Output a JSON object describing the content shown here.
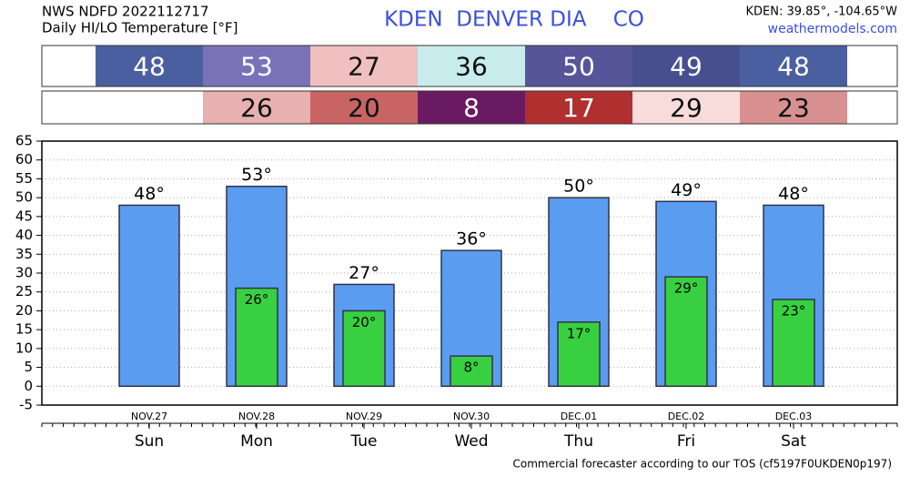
{
  "chart_data": {
    "type": "bar",
    "title": "NWS NDFD 2022112717",
    "subtitle": "Daily HI/LO Temperature [°F]",
    "station": "KDEN  DENVER DIA    CO",
    "location": "KDEN: 39.85°, -104.65°W",
    "source": "weathermodels.com",
    "footer": "Commercial forecaster according to our TOS (cf5197F0UKDEN0p197)",
    "categories": [
      "Sun",
      "Mon",
      "Tue",
      "Wed",
      "Thu",
      "Fri",
      "Sat"
    ],
    "dates": [
      "NOV.27",
      "NOV.28",
      "NOV.29",
      "NOV.30",
      "DEC.01",
      "DEC.02",
      "DEC.03"
    ],
    "series": [
      {
        "name": "HI",
        "color": "#5a9cf0",
        "values": [
          48,
          53,
          27,
          36,
          50,
          49,
          48
        ],
        "value_labels": [
          "48°",
          "53°",
          "27°",
          "36°",
          "50°",
          "49°",
          "48°"
        ],
        "cell_colors": [
          "#4a5fa0",
          "#7a72b8",
          "#f0c0c0",
          "#c8ecec",
          "#56559a",
          "#474f90",
          "#4a5fa0"
        ]
      },
      {
        "name": "LO",
        "color": "#38d040",
        "values": [
          null,
          26,
          20,
          8,
          17,
          29,
          23
        ],
        "value_labels": [
          null,
          "26°",
          "20°",
          "8°",
          "17°",
          "29°",
          "23°"
        ],
        "cell_colors": [
          null,
          "#e8b0b0",
          "#c86464",
          "#6a1a60",
          "#b03030",
          "#f8dcdc",
          "#d89090"
        ]
      }
    ],
    "ylim": [
      -5,
      65
    ],
    "yticks": [
      -5,
      0,
      5,
      10,
      15,
      20,
      25,
      30,
      35,
      40,
      45,
      50,
      55,
      60,
      65
    ],
    "grid": true
  }
}
